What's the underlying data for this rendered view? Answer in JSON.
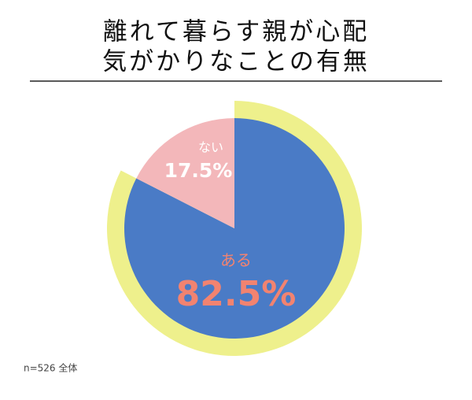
{
  "chart_data": {
    "type": "pie",
    "title": [
      "離れて暮らす親が心配",
      "気がかりなことの有無"
    ],
    "categories": [
      "ある",
      "ない"
    ],
    "values": [
      82.5,
      17.5
    ],
    "value_labels": [
      "82.5%",
      "17.5%"
    ],
    "colors": [
      "#4a7bc6",
      "#f3b7ba"
    ],
    "highlight_color": "#eef08c",
    "note": "n=526 全体"
  }
}
